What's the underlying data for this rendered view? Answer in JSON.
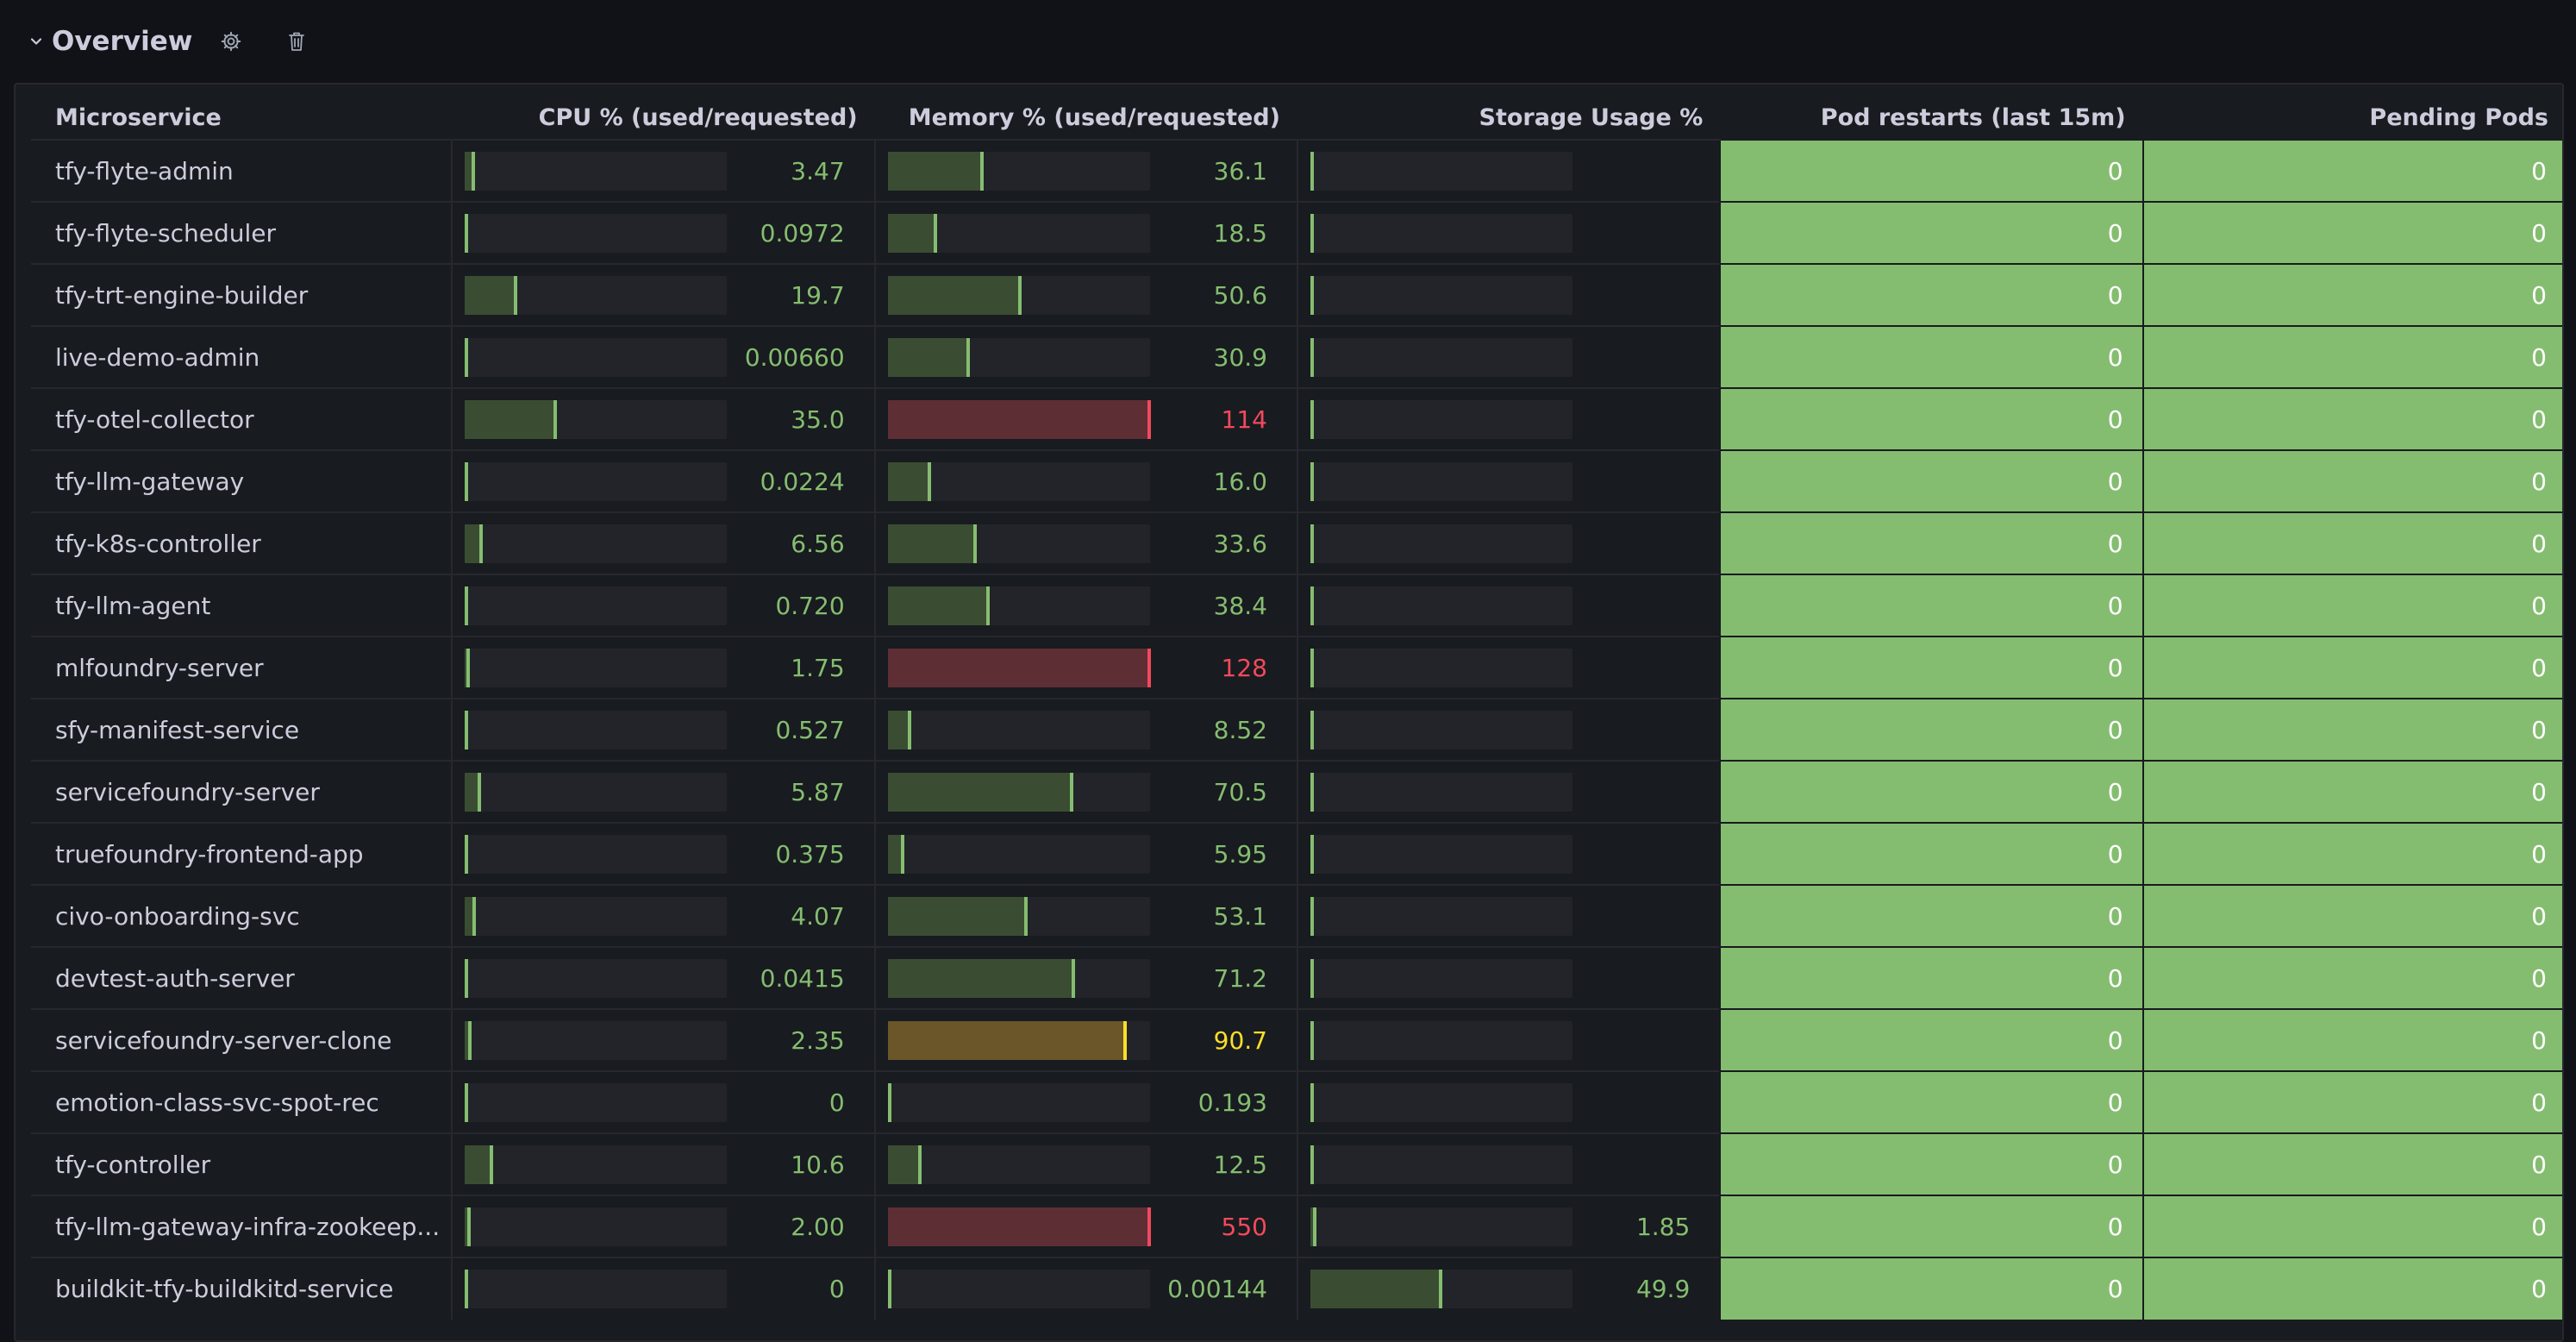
{
  "header": {
    "title": "Overview",
    "collapse_icon": "chevron-down-icon",
    "settings_icon": "gear-icon",
    "delete_icon": "trash-icon"
  },
  "colors": {
    "green": "#85bd70",
    "red": "#f2495c",
    "yellow": "#fade2a",
    "green_fill": "#3a4d33",
    "red_fill": "#5e2e35",
    "yellow_fill": "#6a5628"
  },
  "table": {
    "columns": [
      "Microservice",
      "CPU % (used/requested)",
      "Memory % (used/requested)",
      "Storage Usage %",
      "Pod restarts (last 15m)",
      "Pending Pods"
    ],
    "rows": [
      {
        "name": "tfy-flyte-admin",
        "cpu": "3.47",
        "cpu_fill": 0.0347,
        "mem": "36.1",
        "mem_fill": 0.361,
        "mem_status": "green",
        "storage": "",
        "storage_fill": 0.0,
        "restarts": "0",
        "pending": "0"
      },
      {
        "name": "tfy-flyte-scheduler",
        "cpu": "0.0972",
        "cpu_fill": 0.001,
        "mem": "18.5",
        "mem_fill": 0.185,
        "mem_status": "green",
        "storage": "",
        "storage_fill": 0.0,
        "restarts": "0",
        "pending": "0"
      },
      {
        "name": "tfy-trt-engine-builder",
        "cpu": "19.7",
        "cpu_fill": 0.197,
        "mem": "50.6",
        "mem_fill": 0.506,
        "mem_status": "green",
        "storage": "",
        "storage_fill": 0.0,
        "restarts": "0",
        "pending": "0"
      },
      {
        "name": "live-demo-admin",
        "cpu": "0.00660",
        "cpu_fill": 0.0,
        "mem": "30.9",
        "mem_fill": 0.309,
        "mem_status": "green",
        "storage": "",
        "storage_fill": 0.0,
        "restarts": "0",
        "pending": "0"
      },
      {
        "name": "tfy-otel-collector",
        "cpu": "35.0",
        "cpu_fill": 0.35,
        "mem": "114",
        "mem_fill": 1.0,
        "mem_status": "red",
        "storage": "",
        "storage_fill": 0.0,
        "restarts": "0",
        "pending": "0"
      },
      {
        "name": "tfy-llm-gateway",
        "cpu": "0.0224",
        "cpu_fill": 0.0,
        "mem": "16.0",
        "mem_fill": 0.16,
        "mem_status": "green",
        "storage": "",
        "storage_fill": 0.0,
        "restarts": "0",
        "pending": "0"
      },
      {
        "name": "tfy-k8s-controller",
        "cpu": "6.56",
        "cpu_fill": 0.0656,
        "mem": "33.6",
        "mem_fill": 0.336,
        "mem_status": "green",
        "storage": "",
        "storage_fill": 0.0,
        "restarts": "0",
        "pending": "0"
      },
      {
        "name": "tfy-llm-agent",
        "cpu": "0.720",
        "cpu_fill": 0.0072,
        "mem": "38.4",
        "mem_fill": 0.384,
        "mem_status": "green",
        "storage": "",
        "storage_fill": 0.0,
        "restarts": "0",
        "pending": "0"
      },
      {
        "name": "mlfoundry-server",
        "cpu": "1.75",
        "cpu_fill": 0.0175,
        "mem": "128",
        "mem_fill": 1.0,
        "mem_status": "red",
        "storage": "",
        "storage_fill": 0.0,
        "restarts": "0",
        "pending": "0"
      },
      {
        "name": "sfy-manifest-service",
        "cpu": "0.527",
        "cpu_fill": 0.005,
        "mem": "8.52",
        "mem_fill": 0.0852,
        "mem_status": "green",
        "storage": "",
        "storage_fill": 0.0,
        "restarts": "0",
        "pending": "0"
      },
      {
        "name": "servicefoundry-server",
        "cpu": "5.87",
        "cpu_fill": 0.0587,
        "mem": "70.5",
        "mem_fill": 0.705,
        "mem_status": "green",
        "storage": "",
        "storage_fill": 0.0,
        "restarts": "0",
        "pending": "0"
      },
      {
        "name": "truefoundry-frontend-app",
        "cpu": "0.375",
        "cpu_fill": 0.004,
        "mem": "5.95",
        "mem_fill": 0.0595,
        "mem_status": "green",
        "storage": "",
        "storage_fill": 0.0,
        "restarts": "0",
        "pending": "0"
      },
      {
        "name": "civo-onboarding-svc",
        "cpu": "4.07",
        "cpu_fill": 0.0407,
        "mem": "53.1",
        "mem_fill": 0.531,
        "mem_status": "green",
        "storage": "",
        "storage_fill": 0.0,
        "restarts": "0",
        "pending": "0"
      },
      {
        "name": "devtest-auth-server",
        "cpu": "0.0415",
        "cpu_fill": 0.0,
        "mem": "71.2",
        "mem_fill": 0.712,
        "mem_status": "green",
        "storage": "",
        "storage_fill": 0.0,
        "restarts": "0",
        "pending": "0"
      },
      {
        "name": "servicefoundry-server-clone",
        "cpu": "2.35",
        "cpu_fill": 0.0235,
        "mem": "90.7",
        "mem_fill": 0.907,
        "mem_status": "yellow",
        "storage": "",
        "storage_fill": 0.0,
        "restarts": "0",
        "pending": "0"
      },
      {
        "name": "emotion-class-svc-spot-rec",
        "cpu": "0",
        "cpu_fill": 0.0,
        "mem": "0.193",
        "mem_fill": 0.0,
        "mem_status": "green",
        "storage": "",
        "storage_fill": 0.0,
        "restarts": "0",
        "pending": "0"
      },
      {
        "name": "tfy-controller",
        "cpu": "10.6",
        "cpu_fill": 0.106,
        "mem": "12.5",
        "mem_fill": 0.125,
        "mem_status": "green",
        "storage": "",
        "storage_fill": 0.0,
        "restarts": "0",
        "pending": "0"
      },
      {
        "name": "tfy-llm-gateway-infra-zookeep...",
        "cpu": "2.00",
        "cpu_fill": 0.02,
        "mem": "550",
        "mem_fill": 1.0,
        "mem_status": "red",
        "storage": "1.85",
        "storage_fill": 0.0185,
        "restarts": "0",
        "pending": "0"
      },
      {
        "name": "buildkit-tfy-buildkitd-service",
        "cpu": "0",
        "cpu_fill": 0.0,
        "mem": "0.00144",
        "mem_fill": 0.0,
        "mem_status": "green",
        "storage": "49.9",
        "storage_fill": 0.499,
        "restarts": "0",
        "pending": "0"
      }
    ]
  }
}
